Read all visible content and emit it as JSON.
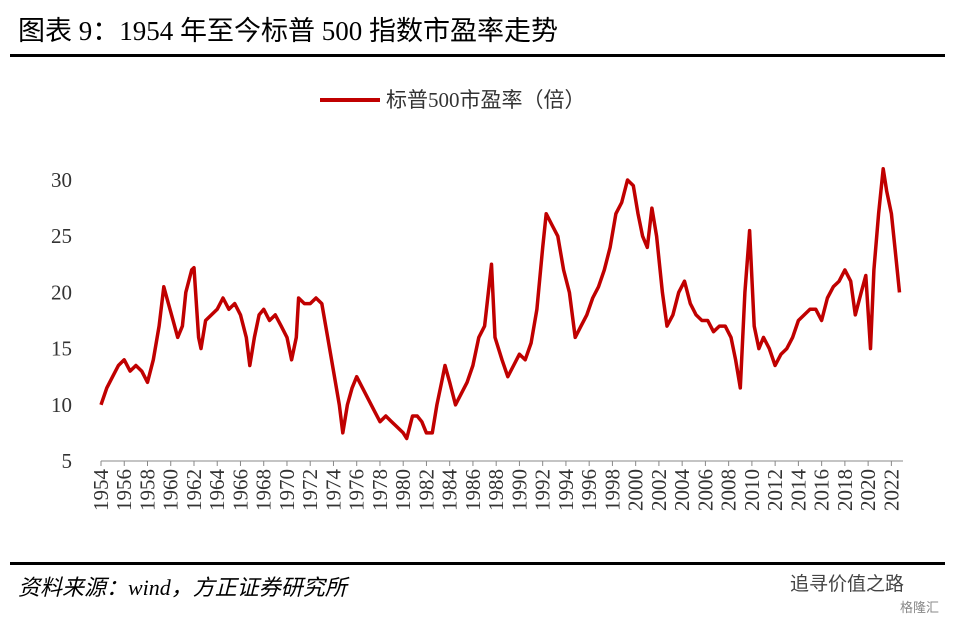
{
  "header": {
    "title": "图表 9：1954 年至今标普 500 指数市盈率走势"
  },
  "chart_data": {
    "type": "line",
    "x": [
      1954,
      1954.5,
      1955,
      1955.5,
      1956,
      1956.5,
      1957,
      1957.5,
      1958,
      1958.5,
      1959,
      1959.4,
      1959.8,
      1960.2,
      1960.6,
      1961,
      1961.3,
      1961.8,
      1962,
      1962.4,
      1962.6,
      1963,
      1963.5,
      1964,
      1964.5,
      1965,
      1965.5,
      1966,
      1966.5,
      1966.8,
      1967.2,
      1967.6,
      1968,
      1968.5,
      1969,
      1969.5,
      1970,
      1970.4,
      1970.8,
      1971,
      1971.5,
      1972,
      1972.5,
      1973,
      1973.5,
      1974,
      1974.5,
      1974.8,
      1975.2,
      1975.6,
      1976,
      1976.5,
      1977,
      1977.5,
      1978,
      1978.5,
      1979,
      1979.5,
      1980,
      1980.3,
      1980.8,
      1981.2,
      1981.6,
      1982,
      1982.5,
      1982.9,
      1983.3,
      1983.6,
      1984,
      1984.5,
      1985,
      1985.5,
      1986,
      1986.5,
      1987,
      1987.6,
      1987.9,
      1988.5,
      1989,
      1989.5,
      1990,
      1990.5,
      1991,
      1991.5,
      1992,
      1992.3,
      1992.8,
      1993.3,
      1993.8,
      1994.3,
      1994.8,
      1995.3,
      1995.8,
      1996.3,
      1996.8,
      1997.3,
      1997.8,
      1998.3,
      1998.8,
      1999.3,
      1999.8,
      2000.2,
      2000.6,
      2001,
      2001.4,
      2001.8,
      2002.3,
      2002.7,
      2003.2,
      2003.7,
      2004.2,
      2004.7,
      2005.2,
      2005.7,
      2006.2,
      2006.7,
      2007.2,
      2007.7,
      2008.2,
      2008.6,
      2009,
      2009.4,
      2009.8,
      2010.2,
      2010.6,
      2011,
      2011.5,
      2012,
      2012.5,
      2013,
      2013.5,
      2014,
      2014.5,
      2015,
      2015.5,
      2016,
      2016.5,
      2017,
      2017.5,
      2018,
      2018.5,
      2018.9,
      2019.4,
      2019.8,
      2020.2,
      2020.5,
      2020.9,
      2021.3,
      2021.6,
      2022,
      2022.3,
      2022.7
    ],
    "series": [
      {
        "name": "标普500市盈率（倍）",
        "color": "#c00000",
        "values": [
          10,
          11.5,
          12.5,
          13.5,
          14,
          13,
          13.5,
          13,
          12,
          14,
          17,
          20.5,
          19,
          17.5,
          16,
          17,
          20,
          22,
          22.2,
          16,
          15,
          17.5,
          18,
          18.5,
          19.5,
          18.5,
          19,
          18,
          16,
          13.5,
          16,
          18,
          18.5,
          17.5,
          18,
          17,
          16,
          14,
          16,
          19.5,
          19,
          19,
          19.5,
          19,
          16,
          13,
          10,
          7.5,
          10,
          11.5,
          12.5,
          11.5,
          10.5,
          9.5,
          8.5,
          9,
          8.5,
          8,
          7.5,
          7,
          9,
          9,
          8.5,
          7.5,
          7.5,
          10,
          12,
          13.5,
          12,
          10,
          11,
          12,
          13.5,
          16,
          17,
          22.5,
          16,
          14,
          12.5,
          13.5,
          14.5,
          14,
          15.5,
          18.5,
          24,
          27,
          26,
          25,
          22,
          20,
          16,
          17,
          18,
          19.5,
          20.5,
          22,
          24,
          27,
          28,
          30,
          29.5,
          27,
          25,
          24,
          27.5,
          25,
          20,
          17,
          18,
          20,
          21,
          19,
          18,
          17.5,
          17.5,
          16.5,
          17,
          17,
          16,
          14,
          11.5,
          20,
          25.5,
          17,
          15,
          16,
          15,
          13.5,
          14.5,
          15,
          16,
          17.5,
          18,
          18.5,
          18.5,
          17.5,
          19.5,
          20.5,
          21,
          22,
          21,
          18,
          20,
          21.5,
          15,
          22,
          27,
          31,
          29,
          27,
          24,
          20
        ]
      }
    ],
    "xlim": [
      1954,
      2023
    ],
    "xticks": [
      1954,
      1956,
      1958,
      1960,
      1962,
      1964,
      1966,
      1968,
      1970,
      1972,
      1974,
      1976,
      1978,
      1980,
      1982,
      1984,
      1986,
      1988,
      1990,
      1992,
      1994,
      1996,
      1998,
      2000,
      2002,
      2004,
      2006,
      2008,
      2010,
      2012,
      2014,
      2016,
      2018,
      2020,
      2022
    ],
    "ylim": [
      5,
      30
    ],
    "yticks": [
      5,
      10,
      15,
      20,
      25,
      30
    ],
    "legend": "top"
  },
  "footer": {
    "source": "资料来源：wind，方正证券研究所",
    "watermark": "追寻价值之路",
    "brand": "格隆汇"
  }
}
